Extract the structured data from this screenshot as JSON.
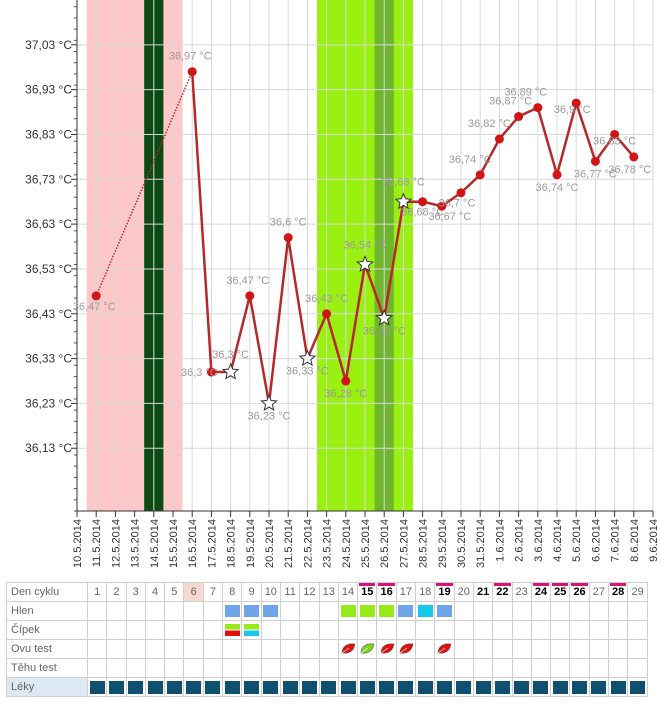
{
  "chart_data": {
    "type": "line",
    "y_ticks": [
      "37,03 °C",
      "36,93 °C",
      "36,83 °C",
      "36,73 °C",
      "36,63 °C",
      "36,53 °C",
      "36,43 °C",
      "36,33 °C",
      "36,23 °C",
      "36,13 °C"
    ],
    "y_tick_values": [
      37.03,
      36.93,
      36.83,
      36.73,
      36.63,
      36.53,
      36.43,
      36.33,
      36.23,
      36.13
    ],
    "ylim": [
      35.99,
      37.13
    ],
    "x_ticks": [
      "10.5.2014",
      "11.5.2014",
      "12.5.2014",
      "13.5.2014",
      "14.5.2014",
      "15.5.2014",
      "16.5.2014",
      "17.5.2014",
      "18.5.2014",
      "19.5.2014",
      "20.5.2014",
      "21.5.2014",
      "22.5.2014",
      "23.5.2014",
      "24.5.2014",
      "25.5.2014",
      "26.5.2014",
      "27.5.2014",
      "28.5.2014",
      "29.5.2014",
      "30.5.2014",
      "31.5.2014",
      "1.6.2014",
      "2.6.2014",
      "3.6.2014",
      "4.6.2014",
      "5.6.2014",
      "6.6.2014",
      "7.6.2014",
      "8.6.2014",
      "9.6.2014"
    ],
    "grid": true,
    "bands": [
      {
        "from": 0.5,
        "to": 5.5,
        "color": "#ffc8c8"
      },
      {
        "from": 3.5,
        "to": 4.5,
        "color": "#0b4a12"
      },
      {
        "from": 12.5,
        "to": 17.5,
        "color": "#99f011"
      },
      {
        "from": 15.5,
        "to": 16.5,
        "color": "#6fb52e"
      }
    ],
    "series": [
      {
        "points": [
          {
            "x": 1,
            "y": 36.47,
            "label": "36,47 °C",
            "marker": "dot"
          },
          {
            "x": 6,
            "y": 36.97,
            "label": "36,97 °C",
            "marker": "dot"
          },
          {
            "x": 7,
            "y": 36.3,
            "label": "36,3 °C",
            "marker": "dot"
          },
          {
            "x": 8,
            "y": 36.3,
            "label": "36,3 °C",
            "marker": "star"
          },
          {
            "x": 9,
            "y": 36.47,
            "label": "36,47 °C",
            "marker": "dot"
          },
          {
            "x": 10,
            "y": 36.23,
            "label": "36,23 °C",
            "marker": "star"
          },
          {
            "x": 11,
            "y": 36.6,
            "label": "36,6 °C",
            "marker": "dot"
          },
          {
            "x": 12,
            "y": 36.33,
            "label": "36,33 °C",
            "marker": "star"
          },
          {
            "x": 13,
            "y": 36.43,
            "label": "36,43 °C",
            "marker": "dot"
          },
          {
            "x": 14,
            "y": 36.28,
            "label": "36,28 °C",
            "marker": "dot"
          },
          {
            "x": 15,
            "y": 36.54,
            "label": "36,54 °C",
            "marker": "star"
          },
          {
            "x": 16,
            "y": 36.42,
            "label": "36,42 °C",
            "marker": "star"
          },
          {
            "x": 17,
            "y": 36.68,
            "label": "36,68 °C",
            "marker": "star"
          },
          {
            "x": 18,
            "y": 36.68,
            "label": "36,68 °C",
            "marker": "dot"
          },
          {
            "x": 19,
            "y": 36.67,
            "label": "36,67 °C",
            "marker": "dot"
          },
          {
            "x": 20,
            "y": 36.7,
            "label": "36,7 °C",
            "marker": "dot"
          },
          {
            "x": 21,
            "y": 36.74,
            "label": "36,74 °C",
            "marker": "dot"
          },
          {
            "x": 22,
            "y": 36.82,
            "label": "36,82 °C",
            "marker": "dot"
          },
          {
            "x": 23,
            "y": 36.87,
            "label": "36,87 °C",
            "marker": "dot"
          },
          {
            "x": 24,
            "y": 36.89,
            "label": "36,89 °C",
            "marker": "dot"
          },
          {
            "x": 25,
            "y": 36.74,
            "label": "36,74 °C",
            "marker": "dot"
          },
          {
            "x": 26,
            "y": 36.9,
            "label": "36,9 °C",
            "marker": "dot"
          },
          {
            "x": 27,
            "y": 36.77,
            "label": "36,77 °C",
            "marker": "dot"
          },
          {
            "x": 28,
            "y": 36.83,
            "label": "36,83 °C",
            "marker": "dot"
          },
          {
            "x": 29,
            "y": 36.78,
            "label": "36,78 °C",
            "marker": "dot"
          }
        ]
      }
    ]
  },
  "table": {
    "row_labels": [
      "Den cyklu",
      "Hlen",
      "Čípek",
      "Ovu test",
      "Těhu test",
      "Léky"
    ],
    "days": [
      "1",
      "2",
      "3",
      "4",
      "5",
      "6",
      "7",
      "8",
      "9",
      "10",
      "11",
      "12",
      "13",
      "14",
      "15",
      "16",
      "17",
      "18",
      "19",
      "20",
      "21",
      "22",
      "23",
      "24",
      "25",
      "26",
      "27",
      "28",
      "29"
    ],
    "bold_days": [
      15,
      16,
      19,
      21,
      22,
      24,
      25,
      26,
      28
    ],
    "topbar_days": [
      15,
      16,
      19,
      22,
      24,
      25,
      26,
      28
    ],
    "highlight_days": [
      6
    ],
    "hlen": {
      "8": "blue",
      "9": "blue",
      "10": "blue",
      "14": "green",
      "15": "green",
      "16": "green",
      "17": "blue",
      "18": "cyan",
      "19": "blue"
    },
    "cipek": {
      "8": "red-green",
      "9": "cyan-green"
    },
    "ovu": {
      "14": "red",
      "15": "green",
      "16": "red",
      "17": "red",
      "19": "red"
    },
    "leky_days": 29
  }
}
